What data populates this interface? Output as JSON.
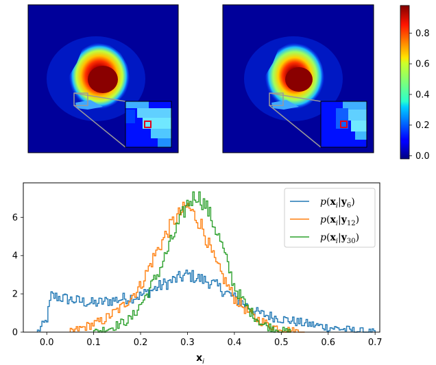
{
  "colormap": {
    "name": "jet",
    "ticks": [
      "0.0",
      "0.2",
      "0.4",
      "0.6",
      "0.8"
    ],
    "tick_values": [
      0.0,
      0.2,
      0.4,
      0.6,
      0.8
    ],
    "range": [
      -0.02,
      0.98
    ]
  },
  "images": [
    {
      "description_key": "left-heatmap",
      "highlight_color": "#e3001b"
    },
    {
      "description_key": "right-heatmap",
      "highlight_color": "#e3001b"
    }
  ],
  "chart_data": {
    "type": "histogram",
    "title": "",
    "xlabel": "x_i",
    "ylabel": "",
    "xlim": [
      -0.05,
      0.71
    ],
    "ylim": [
      0,
      7.8
    ],
    "xticks": [
      "0.0",
      "0.1",
      "0.2",
      "0.3",
      "0.4",
      "0.5",
      "0.6",
      "0.7"
    ],
    "xtick_values": [
      0.0,
      0.1,
      0.2,
      0.3,
      0.4,
      0.5,
      0.6,
      0.7
    ],
    "yticks": [
      "0",
      "2",
      "4",
      "6"
    ],
    "ytick_values": [
      0,
      2,
      4,
      6
    ],
    "legend_position": "top-right",
    "series": [
      {
        "name_main": "p(x",
        "name_sub_i": "i",
        "name_mid": "|y",
        "name_sub_n": "6",
        "name_end": ")",
        "color": "#1f77b4",
        "profile": [
          [
            -0.02,
            0
          ],
          [
            0,
            0.6
          ],
          [
            0.01,
            1.9
          ],
          [
            0.05,
            1.7
          ],
          [
            0.1,
            1.5
          ],
          [
            0.15,
            1.7
          ],
          [
            0.2,
            1.9
          ],
          [
            0.25,
            2.5
          ],
          [
            0.3,
            3.0
          ],
          [
            0.35,
            2.6
          ],
          [
            0.4,
            1.8
          ],
          [
            0.45,
            1.0
          ],
          [
            0.5,
            0.7
          ],
          [
            0.55,
            0.45
          ],
          [
            0.6,
            0.25
          ],
          [
            0.65,
            0.1
          ],
          [
            0.68,
            0.02
          ],
          [
            0.7,
            0
          ]
        ]
      },
      {
        "name_main": "p(x",
        "name_sub_i": "i",
        "name_mid": "|y",
        "name_sub_n": "12",
        "name_end": ")",
        "color": "#ff7f0e",
        "profile": [
          [
            0.05,
            0
          ],
          [
            0.08,
            0.25
          ],
          [
            0.12,
            0.6
          ],
          [
            0.16,
            1.3
          ],
          [
            0.2,
            2.4
          ],
          [
            0.23,
            4.0
          ],
          [
            0.27,
            5.8
          ],
          [
            0.3,
            6.6
          ],
          [
            0.33,
            5.6
          ],
          [
            0.36,
            3.6
          ],
          [
            0.4,
            1.8
          ],
          [
            0.44,
            0.8
          ],
          [
            0.48,
            0.3
          ],
          [
            0.52,
            0.08
          ],
          [
            0.55,
            0
          ]
        ]
      },
      {
        "name_main": "p(x",
        "name_sub_i": "i",
        "name_mid": "|y",
        "name_sub_n": "30",
        "name_end": ")",
        "color": "#2ca02c",
        "profile": [
          [
            0.1,
            0
          ],
          [
            0.14,
            0.25
          ],
          [
            0.18,
            0.7
          ],
          [
            0.21,
            1.8
          ],
          [
            0.24,
            3.2
          ],
          [
            0.27,
            5.0
          ],
          [
            0.3,
            6.7
          ],
          [
            0.32,
            7.2
          ],
          [
            0.34,
            6.6
          ],
          [
            0.37,
            4.8
          ],
          [
            0.4,
            2.4
          ],
          [
            0.43,
            1.2
          ],
          [
            0.46,
            0.4
          ],
          [
            0.5,
            0.08
          ],
          [
            0.52,
            0
          ]
        ]
      }
    ]
  }
}
